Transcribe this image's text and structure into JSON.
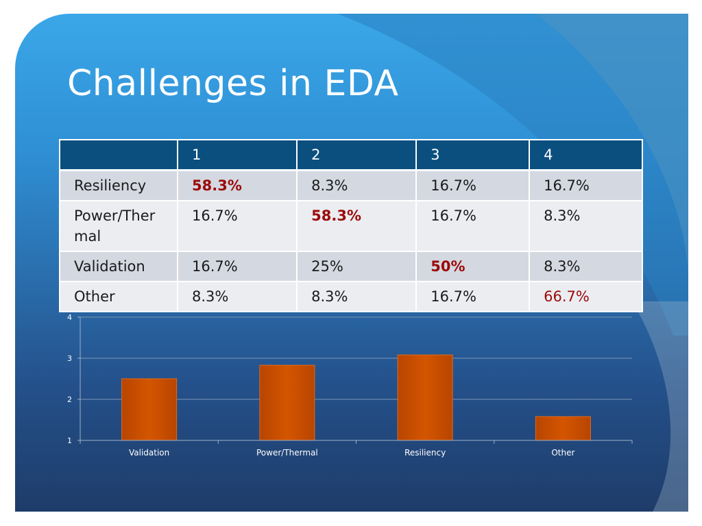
{
  "slide": {
    "title": "Challenges in EDA"
  },
  "table": {
    "header": [
      "",
      "1",
      "2",
      "3",
      "4"
    ],
    "rows": [
      {
        "label": "Resiliency",
        "cells": [
          "58.3%",
          "8.3%",
          "16.7%",
          "16.7%"
        ]
      },
      {
        "label": "Power/Thermal",
        "cells": [
          "16.7%",
          "58.3%",
          "16.7%",
          "8.3%"
        ]
      },
      {
        "label": "Validation",
        "cells": [
          "16.7%",
          "25%",
          "50%",
          "8.3%"
        ]
      },
      {
        "label": "Other",
        "cells": [
          "8.3%",
          "8.3%",
          "16.7%",
          "66.7%"
        ]
      }
    ],
    "highlight_color": "#9b0a0a"
  },
  "chart_data": {
    "type": "bar",
    "categories": [
      "Validation",
      "Power/Thermal",
      "Resiliency",
      "Other"
    ],
    "values": [
      2.5,
      2.83,
      3.08,
      1.58
    ],
    "ylim": [
      1,
      4
    ],
    "yticks": [
      "1",
      "2",
      "3",
      "4"
    ],
    "grid": true,
    "legend": "none",
    "bar_color": "#d45500"
  }
}
